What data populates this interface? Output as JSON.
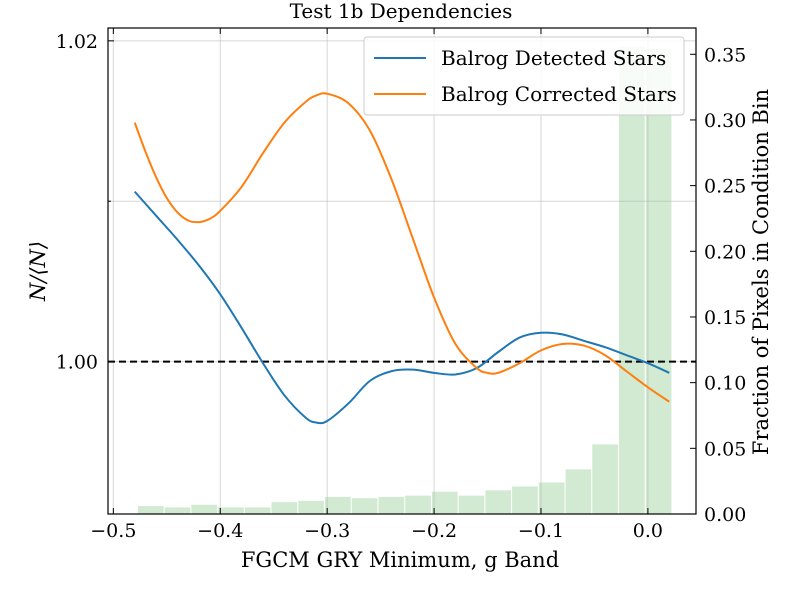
{
  "chart_data": {
    "type": "line",
    "title": "Test 1b Dependencies",
    "xlabel": "FGCM GRY Minimum, g Band",
    "ylabel": "N/⟨N⟩",
    "y2label": "Fraction of Pixels in Condition Bin",
    "xlim": [
      -0.505,
      0.045
    ],
    "ylim": [
      0.9905,
      1.0208
    ],
    "y2lim": [
      0.0,
      0.37
    ],
    "x_ticks": [
      -0.5,
      -0.4,
      -0.3,
      -0.2,
      -0.1,
      0.0
    ],
    "x_tick_labels": [
      "−0.5",
      "−0.4",
      "−0.3",
      "−0.2",
      "−0.1",
      "0.0"
    ],
    "y_ticks": [
      1.0,
      1.02
    ],
    "y_tick_labels": [
      "1.00",
      "1.02"
    ],
    "y_minor_ticks": [
      1.01
    ],
    "y2_ticks": [
      0.0,
      0.05,
      0.1,
      0.15,
      0.2,
      0.25,
      0.3,
      0.35
    ],
    "y2_tick_labels": [
      "0.00",
      "0.05",
      "0.10",
      "0.15",
      "0.20",
      "0.25",
      "0.30",
      "0.35"
    ],
    "reference_line": 1.0,
    "grid": true,
    "legend_position": "top-right",
    "series": [
      {
        "name": "Balrog Detected Stars",
        "color": "#1f77b4",
        "x": [
          -0.48,
          -0.46,
          -0.44,
          -0.42,
          -0.4,
          -0.38,
          -0.36,
          -0.34,
          -0.32,
          -0.31,
          -0.3,
          -0.28,
          -0.26,
          -0.24,
          -0.22,
          -0.2,
          -0.18,
          -0.16,
          -0.14,
          -0.12,
          -0.1,
          -0.08,
          -0.06,
          -0.04,
          -0.02,
          0.0,
          0.02
        ],
        "values": [
          1.0106,
          1.0091,
          1.0076,
          1.006,
          1.0042,
          1.0021,
          0.9999,
          0.9979,
          0.9965,
          0.9962,
          0.9963,
          0.9974,
          0.9988,
          0.9994,
          0.9995,
          0.9993,
          0.9992,
          0.9996,
          1.0006,
          1.0015,
          1.0018,
          1.0017,
          1.0013,
          1.0009,
          1.0004,
          0.9999,
          0.9993
        ]
      },
      {
        "name": "Balrog Corrected Stars",
        "color": "#ff7f0e",
        "x": [
          -0.48,
          -0.47,
          -0.46,
          -0.45,
          -0.44,
          -0.43,
          -0.42,
          -0.41,
          -0.4,
          -0.38,
          -0.36,
          -0.34,
          -0.32,
          -0.31,
          -0.3,
          -0.28,
          -0.26,
          -0.24,
          -0.22,
          -0.2,
          -0.18,
          -0.16,
          -0.15,
          -0.14,
          -0.12,
          -0.1,
          -0.08,
          -0.06,
          -0.04,
          -0.02,
          0.0,
          0.02
        ],
        "values": [
          1.0149,
          1.0131,
          1.0115,
          1.0102,
          1.0093,
          1.0088,
          1.0087,
          1.0089,
          1.0094,
          1.0109,
          1.013,
          1.0149,
          1.0162,
          1.0166,
          1.0167,
          1.0161,
          1.0144,
          1.0114,
          1.0077,
          1.004,
          1.0011,
          0.9996,
          0.9993,
          0.9993,
          0.9999,
          1.0007,
          1.0011,
          1.001,
          1.0004,
          0.9994,
          0.9984,
          0.9975
        ]
      }
    ],
    "histogram": {
      "name": "Fraction of Pixels in Condition Bin",
      "color": "#2ca02c",
      "alpha": 0.22,
      "bin_centers": [
        -0.465,
        -0.44,
        -0.415,
        -0.39,
        -0.365,
        -0.34,
        -0.315,
        -0.29,
        -0.265,
        -0.24,
        -0.215,
        -0.19,
        -0.165,
        -0.14,
        -0.115,
        -0.09,
        -0.065,
        -0.04,
        -0.015,
        0.01
      ],
      "bin_width": 0.024,
      "values": [
        0.006,
        0.005,
        0.007,
        0.005,
        0.005,
        0.009,
        0.01,
        0.013,
        0.012,
        0.013,
        0.014,
        0.017,
        0.014,
        0.018,
        0.021,
        0.024,
        0.034,
        0.053,
        0.356,
        0.354
      ]
    }
  }
}
